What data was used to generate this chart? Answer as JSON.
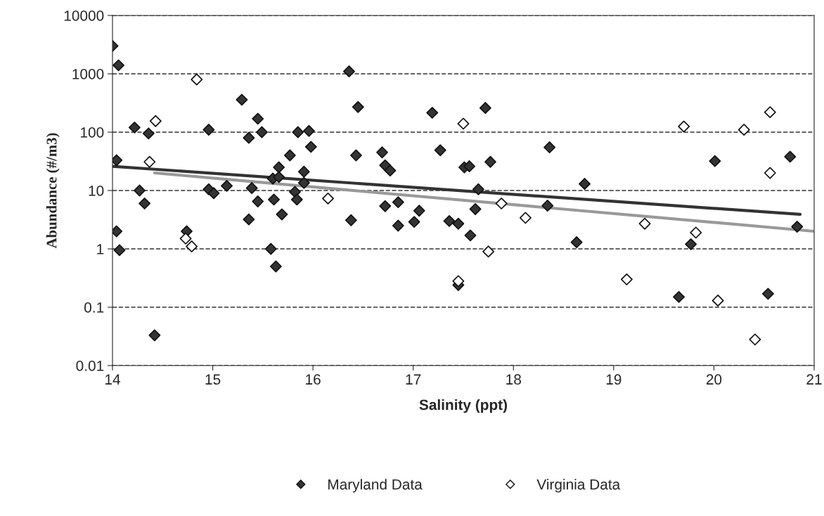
{
  "chart_data": {
    "type": "scatter",
    "xlabel": "Salinity (ppt)",
    "ylabel": "Abundance (#/m3)",
    "xlim": [
      14,
      21
    ],
    "xticks": [
      14,
      15,
      16,
      17,
      18,
      19,
      20,
      21
    ],
    "ylim": [
      0.01,
      10000
    ],
    "yticks": [
      {
        "value": 0.01,
        "label": "0.01"
      },
      {
        "value": 0.1,
        "label": "0.1"
      },
      {
        "value": 1,
        "label": "1"
      },
      {
        "value": 10,
        "label": "10"
      },
      {
        "value": 100,
        "label": "100"
      },
      {
        "value": 1000,
        "label": "1000"
      },
      {
        "value": 10000,
        "label": "10000"
      }
    ],
    "log": "y",
    "grid": "y",
    "legend": "bottom",
    "marker": "diamond",
    "series": [
      {
        "name": "Maryland Data",
        "color": "#333333",
        "x": [
          14.0,
          14.06,
          14.04,
          14.04,
          14.07,
          14.22,
          14.27,
          14.32,
          14.36,
          14.42,
          14.74,
          14.96,
          14.96,
          15.01,
          15.14,
          15.29,
          15.36,
          15.36,
          15.45,
          15.45,
          15.49,
          15.39,
          15.6,
          15.58,
          15.61,
          15.63,
          15.66,
          15.66,
          15.69,
          15.77,
          15.82,
          15.84,
          15.85,
          15.91,
          15.96,
          15.98,
          15.91,
          16.36,
          16.45,
          17.19,
          17.72,
          16.43,
          16.69,
          16.72,
          16.77,
          17.27,
          17.51,
          17.56,
          17.77,
          18.36,
          18.71,
          17.65,
          16.72,
          16.85,
          17.06,
          16.38,
          16.85,
          17.01,
          17.36,
          17.45,
          17.62,
          17.57,
          18.34,
          18.63,
          17.45,
          20.01,
          20.76,
          20.83,
          19.77,
          19.65,
          20.54
        ],
        "values": [
          3000,
          1400,
          33,
          2,
          0.95,
          120,
          10,
          6,
          95,
          0.033,
          2,
          110,
          10.5,
          9,
          12,
          360,
          80,
          3.2,
          170,
          6.5,
          100,
          11,
          16,
          1,
          7,
          0.5,
          25,
          17,
          3.9,
          40,
          9.5,
          7,
          100,
          21,
          105,
          56,
          13.5,
          1100,
          270,
          215,
          260,
          40,
          45,
          27,
          22,
          49,
          25,
          26,
          31,
          55,
          13,
          10.5,
          5.4,
          6.3,
          4.5,
          3.1,
          2.5,
          2.9,
          3.0,
          2.7,
          4.8,
          1.7,
          5.5,
          1.3,
          0.24,
          32,
          38,
          2.4,
          1.2,
          0.15,
          0.17
        ]
      },
      {
        "name": "Virginia Data",
        "color": "#ffffff",
        "x": [
          14.43,
          14.37,
          14.84,
          14.73,
          14.79,
          16.15,
          17.5,
          17.88,
          18.12,
          17.75,
          17.45,
          19.7,
          20.3,
          20.56,
          20.56,
          19.31,
          19.82,
          19.13,
          20.04,
          20.41
        ],
        "values": [
          155,
          31,
          800,
          1.5,
          1.1,
          7.3,
          140,
          6,
          3.4,
          0.9,
          0.28,
          125,
          110,
          220,
          20,
          2.7,
          1.9,
          0.3,
          0.13,
          0.028
        ]
      },
      {
        "type": "line",
        "marker": "none",
        "color": "#333333",
        "x": [
          14.0,
          20.86
        ],
        "values": [
          26,
          3.9
        ]
      },
      {
        "type": "line",
        "marker": "none",
        "color": "#999999",
        "x": [
          14.42,
          21.0
        ],
        "values": [
          20,
          2.0
        ]
      }
    ]
  }
}
